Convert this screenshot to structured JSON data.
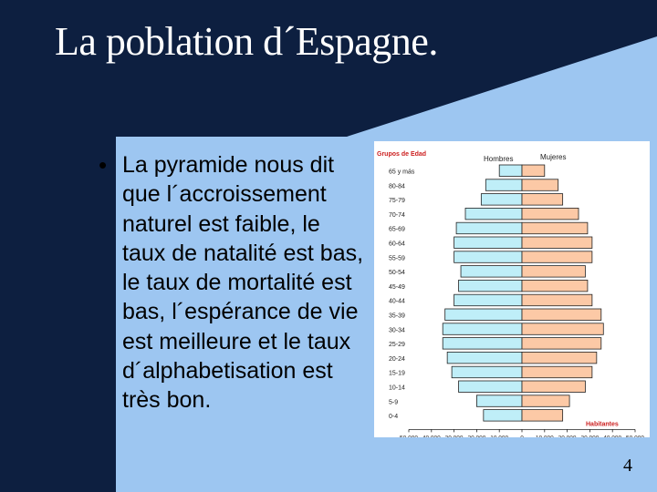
{
  "slide": {
    "title": "La poblation d´Espagne.",
    "bullet": "La pyramide nous dit que l´accroissement naturel est faible, le taux de natalité est bas, le taux de mortalité est bas, l´espérance de vie est meilleure et le taux d´alphabetisation est très bon.",
    "page_number": "4"
  },
  "colors": {
    "navy": "#0d1f40",
    "blue_band": "#3e6aa8",
    "light_bg": "#9dc6f1",
    "male_bar": "#bfeef8",
    "female_bar": "#fcc9a6",
    "label_red": "#cc2020"
  },
  "chart_data": {
    "type": "bar",
    "orientation": "horizontal-pyramid",
    "group_header": "Grupos de Edad",
    "left_label": "Hombres",
    "right_label": "Mujeres",
    "unit_label": "Habitantes",
    "categories": [
      "65 y más",
      "80-84",
      "75-79",
      "70-74",
      "65-69",
      "60-64",
      "55-59",
      "50-54",
      "45-49",
      "40-44",
      "35-39",
      "30-34",
      "25-29",
      "20-24",
      "15-19",
      "10-14",
      "5-9",
      "0-4"
    ],
    "series": [
      {
        "name": "Hombres",
        "values": [
          10000,
          16000,
          18000,
          25000,
          29000,
          30000,
          30000,
          27000,
          28000,
          30000,
          34000,
          35000,
          35000,
          33000,
          31000,
          28000,
          20000,
          17000
        ]
      },
      {
        "name": "Mujeres",
        "values": [
          10000,
          16000,
          18000,
          25000,
          29000,
          31000,
          31000,
          28000,
          29000,
          31000,
          35000,
          36000,
          35000,
          33000,
          31000,
          28000,
          21000,
          18000
        ]
      }
    ],
    "x_ticks": [
      "50.000",
      "40.000",
      "30.000",
      "20.000",
      "10.000",
      "0",
      "10.000",
      "20.000",
      "30.000",
      "40.000",
      "50.000"
    ],
    "xlim": [
      -50000,
      50000
    ]
  }
}
